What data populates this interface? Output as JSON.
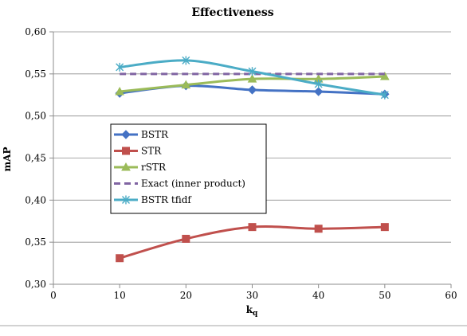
{
  "chart_data": {
    "type": "line",
    "title": "Effectiveness",
    "xlabel": "k",
    "xlabel_sub": "q",
    "ylabel": "mAP",
    "xlim": [
      0,
      60
    ],
    "ylim": [
      0.3,
      0.6
    ],
    "x_ticks": [
      0,
      10,
      20,
      30,
      40,
      50,
      60
    ],
    "x_tick_labels": [
      "0",
      "10",
      "20",
      "30",
      "40",
      "50",
      "60"
    ],
    "y_ticks": [
      0.3,
      0.35,
      0.4,
      0.45,
      0.5,
      0.55,
      0.6
    ],
    "y_tick_labels": [
      "0,30",
      "0,35",
      "0,40",
      "0,45",
      "0,50",
      "0,55",
      "0,60"
    ],
    "grid": "horizontal",
    "legend_position": "inside-left",
    "x": [
      10,
      20,
      30,
      40,
      50
    ],
    "series": [
      {
        "name": "BSTR",
        "values": [
          0.527,
          0.536,
          0.531,
          0.529,
          0.526
        ],
        "color": "#4472C4",
        "marker": "diamond",
        "dash": "solid"
      },
      {
        "name": "STR",
        "values": [
          0.331,
          0.354,
          0.368,
          0.366,
          0.368
        ],
        "color": "#C0504D",
        "marker": "square",
        "dash": "solid"
      },
      {
        "name": "rSTR",
        "values": [
          0.529,
          0.537,
          0.544,
          0.544,
          0.547
        ],
        "color": "#9BBB59",
        "marker": "triangle",
        "dash": "solid"
      },
      {
        "name": "Exact (inner product)",
        "values": [
          0.55,
          0.55,
          0.55,
          0.55,
          0.55
        ],
        "color": "#8064A2",
        "marker": "none",
        "dash": "dashed"
      },
      {
        "name": "BSTR tfidf",
        "values": [
          0.558,
          0.566,
          0.553,
          0.538,
          0.525
        ],
        "color": "#4BACC6",
        "marker": "star",
        "dash": "solid"
      }
    ]
  }
}
